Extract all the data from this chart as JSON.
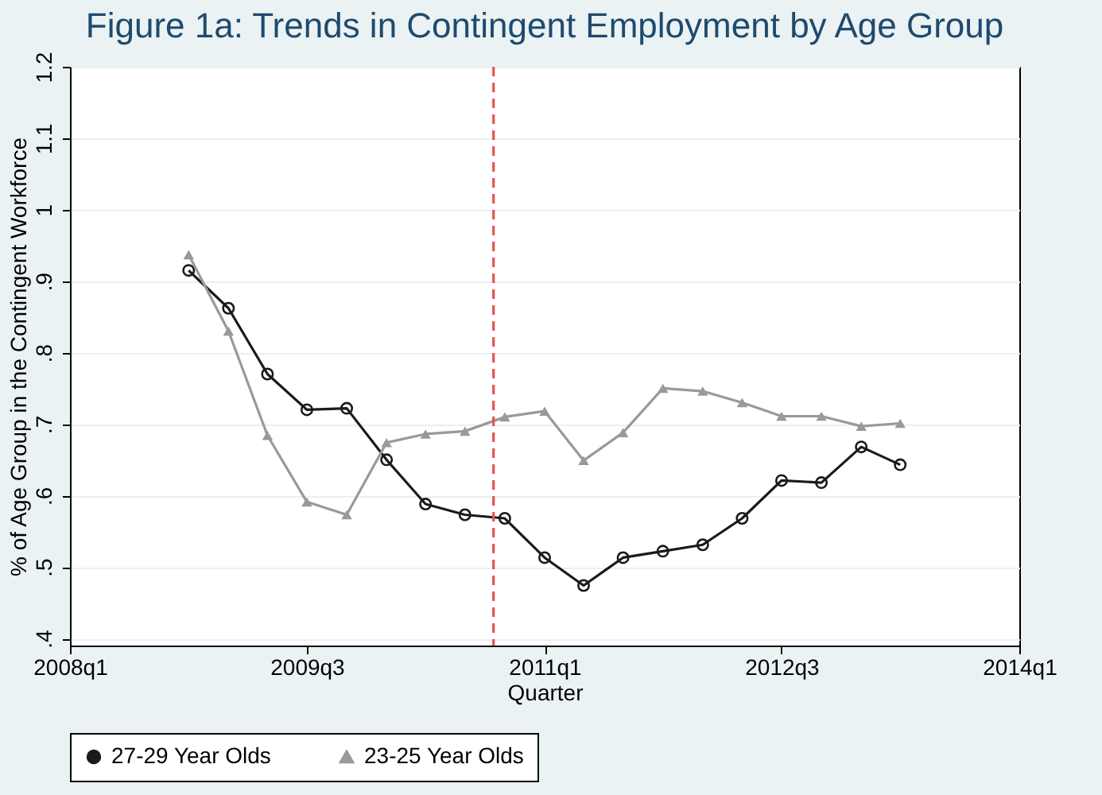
{
  "chart_data": {
    "type": "line",
    "title": "Figure 1a: Trends in Contingent Employment by Age Group",
    "xlabel": "Quarter",
    "ylabel": "% of Age Group in the Contingent Workforce",
    "x": [
      "2008-10",
      "2009-01",
      "2009-04",
      "2009-07",
      "2009-10",
      "2010-01",
      "2010-04",
      "2010-07",
      "2010-10",
      "2011-01",
      "2011-04",
      "2011-07",
      "2011-10",
      "2012-01",
      "2012-04",
      "2012-07",
      "2012-10",
      "2013-01",
      "2013-04"
    ],
    "series": [
      {
        "name": "27-29 Year Olds",
        "color": "#1a1a1a",
        "marker": "circle",
        "values": [
          0.915,
          0.862,
          0.77,
          0.72,
          0.722,
          0.65,
          0.588,
          0.573,
          0.568,
          0.513,
          0.474,
          0.513,
          0.522,
          0.531,
          0.568,
          0.621,
          0.618,
          0.668,
          0.643
        ]
      },
      {
        "name": "23-25 Year Olds",
        "color": "#999999",
        "marker": "triangle",
        "values": [
          0.937,
          0.83,
          0.684,
          0.591,
          0.573,
          0.674,
          0.686,
          0.69,
          0.71,
          0.718,
          0.649,
          0.688,
          0.75,
          0.746,
          0.73,
          0.711,
          0.711,
          0.697,
          0.701
        ]
      }
    ],
    "xlim": [
      "2008-01",
      "2014-01"
    ],
    "xticks": [
      {
        "value": "2008-01",
        "label": "2008q1"
      },
      {
        "value": "2009-07",
        "label": "2009q3"
      },
      {
        "value": "2011-01",
        "label": "2011q1"
      },
      {
        "value": "2012-07",
        "label": "2012q3"
      },
      {
        "value": "2014-01",
        "label": "2014q1"
      }
    ],
    "ylim": [
      0.39,
      1.2
    ],
    "yticks": [
      {
        "value": 0.4,
        "label": ".4"
      },
      {
        "value": 0.5,
        "label": ".5"
      },
      {
        "value": 0.6,
        "label": ".6"
      },
      {
        "value": 0.7,
        "label": ".7"
      },
      {
        "value": 0.8,
        "label": ".8"
      },
      {
        "value": 0.9,
        "label": ".9"
      },
      1,
      1.1,
      1.2
    ],
    "ref_lines": [
      {
        "axis": "x",
        "value": "2010-09-05",
        "color": "#e0584c",
        "line_style": "dashed"
      }
    ],
    "grid": "y",
    "legend": "bottom",
    "line_style": "solid"
  }
}
